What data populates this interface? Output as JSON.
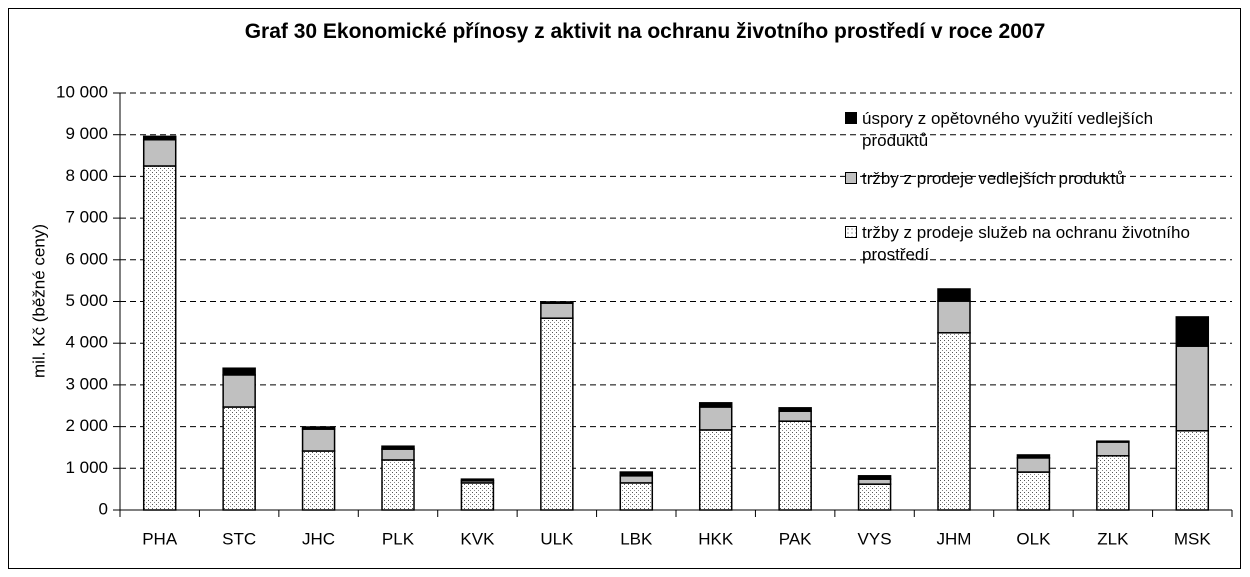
{
  "chart_data": {
    "type": "bar",
    "stacked": true,
    "title": "Graf 30 Ekonomické přínosy z aktivit na ochranu životního prostředí v roce 2007",
    "ylabel": "mil. Kč (běžné ceny)",
    "categories": [
      "PHA",
      "STC",
      "JHC",
      "PLK",
      "KVK",
      "ULK",
      "LBK",
      "HKK",
      "PAK",
      "VYS",
      "JHM",
      "OLK",
      "ZLK",
      "MSK"
    ],
    "series": [
      {
        "name": "tržby z prodeje služeb na ochranu životního prostředí",
        "color": "#ffffff",
        "pattern": "dots",
        "values": [
          8250,
          2470,
          1415,
          1200,
          650,
          4600,
          650,
          1920,
          2130,
          620,
          4250,
          910,
          1300,
          1900
        ]
      },
      {
        "name": "tržby z prodeje vedlejších produktů",
        "color": "#c0c0c0",
        "values": [
          630,
          770,
          525,
          260,
          50,
          360,
          170,
          550,
          240,
          120,
          760,
          340,
          330,
          2030
        ]
      },
      {
        "name": "úspory z opětovného využití vedlejších produktů",
        "color": "#000000",
        "values": [
          80,
          160,
          50,
          70,
          40,
          30,
          90,
          100,
          80,
          80,
          290,
          70,
          20,
          700
        ]
      }
    ],
    "ylim": [
      0,
      10000
    ],
    "yticks": [
      0,
      {
        "value": 1000,
        "label": "1 000"
      },
      {
        "value": 2000,
        "label": "2 000"
      },
      {
        "value": 3000,
        "label": "3 000"
      },
      {
        "value": 4000,
        "label": "4 000"
      },
      {
        "value": 5000,
        "label": "5 000"
      },
      {
        "value": 6000,
        "label": "6 000"
      },
      {
        "value": 7000,
        "label": "7 000"
      },
      {
        "value": 8000,
        "label": "8 000"
      },
      {
        "value": 9000,
        "label": "9 000"
      },
      {
        "value": 10000,
        "label": "10 000"
      }
    ],
    "grid": true,
    "legend": "upper right"
  }
}
